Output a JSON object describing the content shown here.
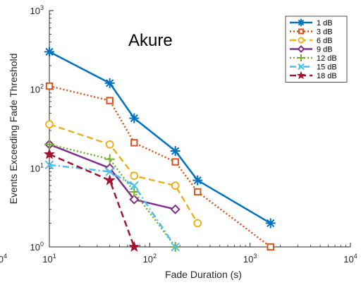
{
  "chart_data": {
    "type": "line",
    "title": "",
    "annotation": "Akure",
    "xlabel": "Fade Duration (s)",
    "ylabel": "Events Exceeding Fade Threshold",
    "xscale": "log",
    "yscale": "log",
    "xlim": [
      10,
      10000
    ],
    "ylim": [
      1,
      1000
    ],
    "xticks": [
      {
        "value": 10,
        "base": "10",
        "exp": "1"
      },
      {
        "value": 100,
        "base": "10",
        "exp": "2"
      },
      {
        "value": 1000,
        "base": "10",
        "exp": "3"
      },
      {
        "value": 10000,
        "base": "10",
        "exp": "4"
      }
    ],
    "yticks": [
      {
        "value": 1,
        "base": "10",
        "exp": "0"
      },
      {
        "value": 10,
        "base": "10",
        "exp": "1"
      },
      {
        "value": 100,
        "base": "10",
        "exp": "2"
      },
      {
        "value": 1000,
        "base": "10",
        "exp": "3"
      }
    ],
    "cutoff_tick": {
      "base": "10",
      "exp": "4"
    },
    "grid": false,
    "legend_position": "top-right",
    "series": [
      {
        "name": "1 dB",
        "color": "#0072BD",
        "dash": "solid",
        "marker": "asterisk",
        "x": [
          10,
          40,
          70,
          180,
          300,
          1600
        ],
        "y": [
          300,
          120,
          43,
          16.5,
          7,
          2
        ]
      },
      {
        "name": "3 dB",
        "color": "#D95319",
        "dash": "dotted",
        "marker": "square",
        "x": [
          10,
          40,
          70,
          180,
          300,
          1600
        ],
        "y": [
          110,
          72,
          21,
          12,
          5,
          1
        ]
      },
      {
        "name": "6 dB",
        "color": "#EDB120",
        "dash": "dashed",
        "marker": "circle",
        "x": [
          10,
          40,
          70,
          180,
          300
        ],
        "y": [
          36,
          20,
          8,
          6,
          2
        ]
      },
      {
        "name": "9 dB",
        "color": "#7E2F8E",
        "dash": "solid",
        "marker": "diamond",
        "x": [
          10,
          40,
          70,
          180
        ],
        "y": [
          20,
          10,
          4,
          3
        ]
      },
      {
        "name": "12 dB",
        "color": "#77AC30",
        "dash": "dotted",
        "marker": "plus",
        "x": [
          10,
          40,
          70,
          180
        ],
        "y": [
          20,
          13,
          5,
          1
        ]
      },
      {
        "name": "15 dB",
        "color": "#4DBEEE",
        "dash": "dashdot",
        "marker": "x",
        "x": [
          10,
          40,
          70,
          180
        ],
        "y": [
          11,
          9,
          6,
          1
        ]
      },
      {
        "name": "18 dB",
        "color": "#A2142F",
        "dash": "dashed",
        "marker": "star",
        "x": [
          10,
          40,
          70
        ],
        "y": [
          15,
          7,
          1
        ]
      }
    ]
  }
}
